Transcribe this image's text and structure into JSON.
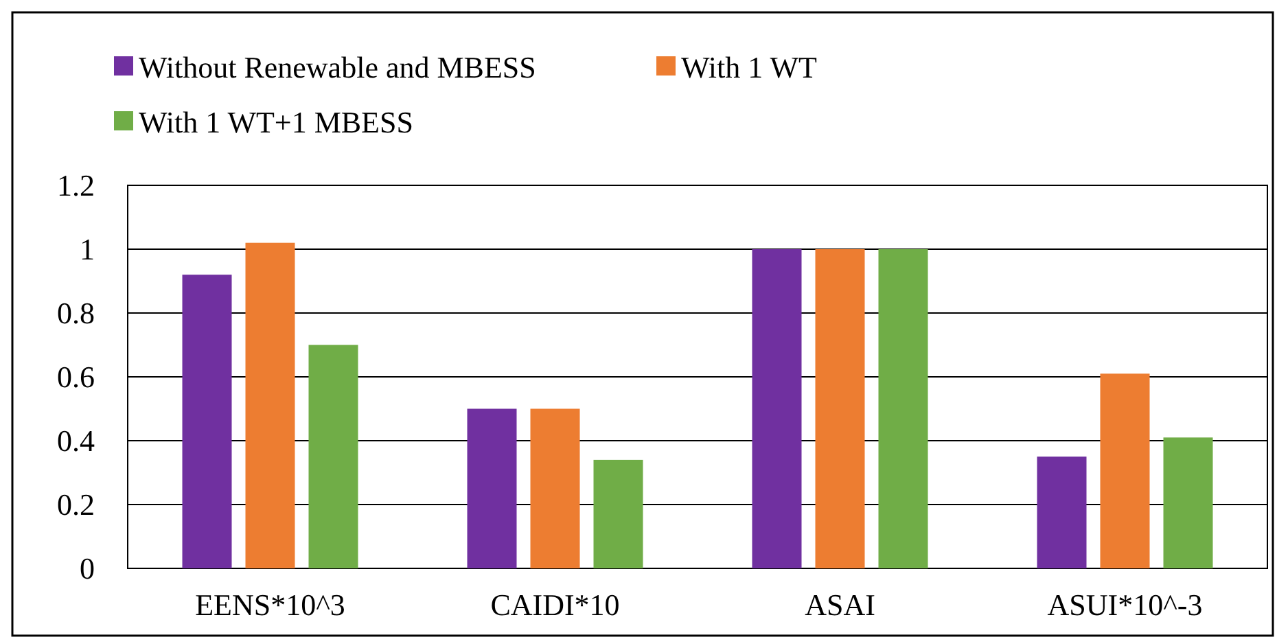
{
  "chart_data": {
    "type": "bar",
    "categories": [
      "EENS*10^3",
      "CAIDI*10",
      "ASAI",
      "ASUI*10^-3"
    ],
    "series": [
      {
        "name": "Without Renewable and MBESS",
        "color": "#7030a0",
        "values": [
          0.92,
          0.5,
          1,
          0.35
        ]
      },
      {
        "name": "With 1 WT",
        "color": "#ed7d31",
        "values": [
          1.02,
          0.5,
          1,
          0.61
        ]
      },
      {
        "name": "With 1 WT+1 MBESS",
        "color": "#70ad47",
        "values": [
          0.7,
          0.34,
          1,
          0.41
        ]
      }
    ],
    "ylim": [
      0,
      1.2
    ],
    "yticks": [
      0,
      {
        "value": 0.2,
        "label": "0.2"
      },
      {
        "value": 0.4,
        "label": "0.4"
      },
      {
        "value": 0.6,
        "label": "0.6"
      },
      {
        "value": 0.8,
        "label": "0.8"
      },
      1,
      {
        "value": 1.2,
        "label": "1.2"
      }
    ],
    "grid": "y",
    "legend": "top"
  }
}
